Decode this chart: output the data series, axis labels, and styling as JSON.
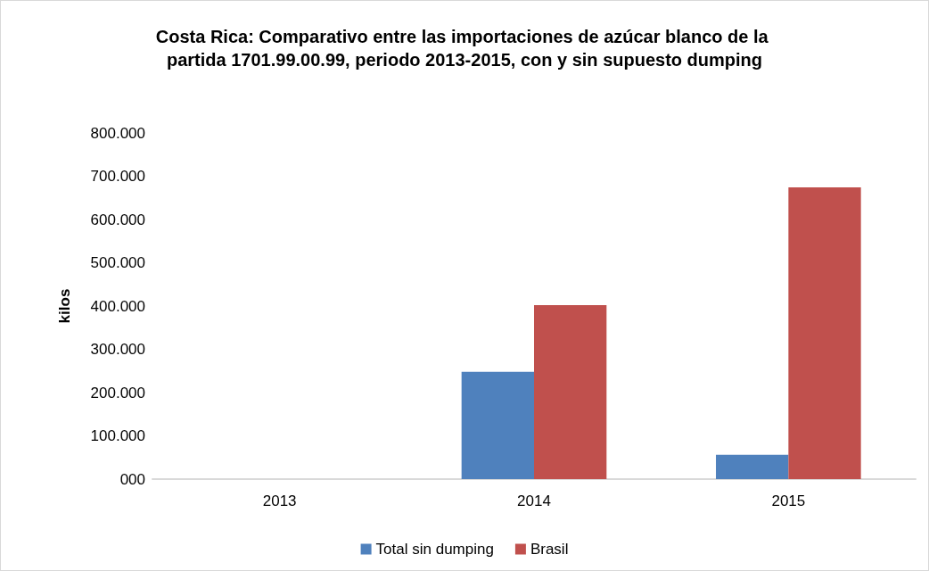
{
  "chart_data": {
    "type": "bar",
    "title": "Costa Rica: Comparativo entre las importaciones de azúcar blanco de la partida 1701.99.00.99, periodo 2013-2015, con y sin supuesto dumping",
    "ylabel": "kilos",
    "categories": [
      "2013",
      "2014",
      "2015"
    ],
    "series": [
      {
        "name": "Total sin dumping",
        "color": "#4f81bd",
        "values": [
          0,
          248000,
          56000
        ]
      },
      {
        "name": "Brasil",
        "color": "#c0504d",
        "values": [
          0,
          402000,
          674000
        ]
      }
    ],
    "ylim": [
      0,
      800000
    ],
    "yticks": [
      {
        "value": 0,
        "label": "000"
      },
      {
        "value": 100000,
        "label": "100.000"
      },
      {
        "value": 200000,
        "label": "200.000"
      },
      {
        "value": 300000,
        "label": "300.000"
      },
      {
        "value": 400000,
        "label": "400.000"
      },
      {
        "value": 500000,
        "label": "500.000"
      },
      {
        "value": 600000,
        "label": "600.000"
      },
      {
        "value": 700000,
        "label": "700.000"
      },
      {
        "value": 800000,
        "label": "800.000"
      }
    ],
    "grid": false,
    "legend": "bottom"
  }
}
